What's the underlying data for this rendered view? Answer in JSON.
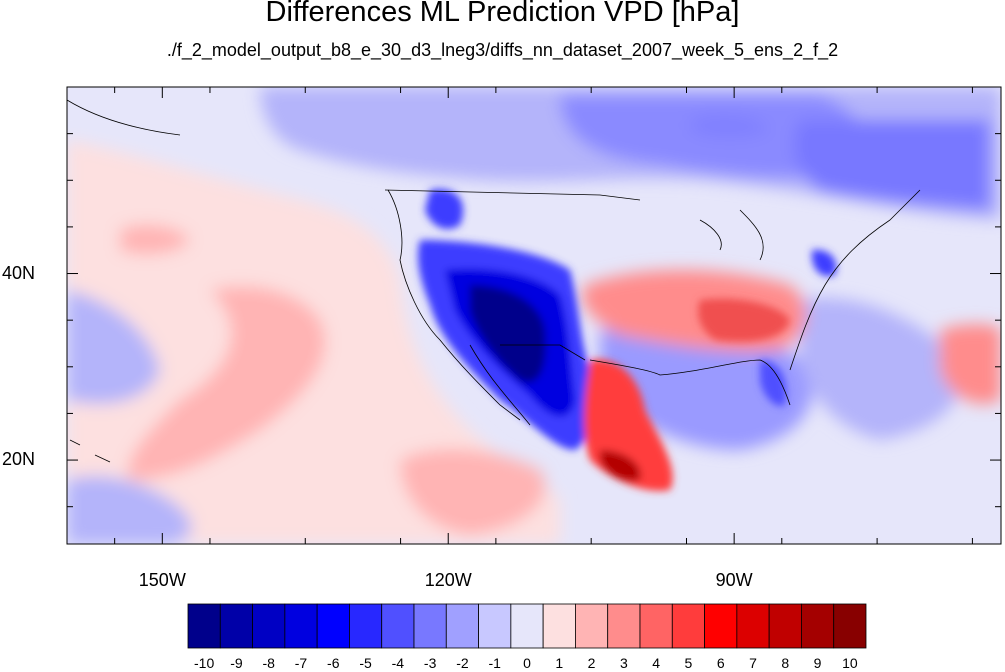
{
  "title": "Differences ML Prediction VPD [hPa]",
  "subtitle": "./f_2_model_output_b8_e_30_d3_lneg3/diffs_nn_dataset_2007_week_5_ens_2_f_2",
  "map": {
    "lon_range": [
      -160,
      -62
    ],
    "lat_range": [
      11,
      60
    ],
    "lat_ticks": [
      {
        "value": 40,
        "label": "40N"
      },
      {
        "value": 20,
        "label": "20N"
      }
    ],
    "lon_ticks": [
      {
        "value": -150,
        "label": "150W"
      },
      {
        "value": -120,
        "label": "120W"
      },
      {
        "value": -90,
        "label": "90W"
      }
    ],
    "background_fill": "#e6e6fa",
    "colors": {
      "strong_negative": "#00008b",
      "negative": "#3c3cff",
      "weak_negative": "#b4b4fa",
      "weak_positive": "#fde0e0",
      "positive": "#f06464",
      "strong_positive": "#8b0000"
    }
  },
  "colorbar": {
    "labels": [
      "-10",
      "-9",
      "-8",
      "-7",
      "-6",
      "-5",
      "-4",
      "-3",
      "-2",
      "-1",
      "0",
      "1",
      "2",
      "3",
      "4",
      "5",
      "6",
      "7",
      "8",
      "9",
      "10"
    ],
    "colors": [
      "#00008b",
      "#0000a8",
      "#0000c4",
      "#0000e0",
      "#0000ff",
      "#2828ff",
      "#5050ff",
      "#7878ff",
      "#a0a0ff",
      "#c8c8ff",
      "#e6e6fa",
      "#fde0e0",
      "#ffb4b4",
      "#ff8c8c",
      "#ff6464",
      "#ff3c3c",
      "#ff0000",
      "#dc0000",
      "#c00000",
      "#a40000",
      "#880000"
    ]
  }
}
